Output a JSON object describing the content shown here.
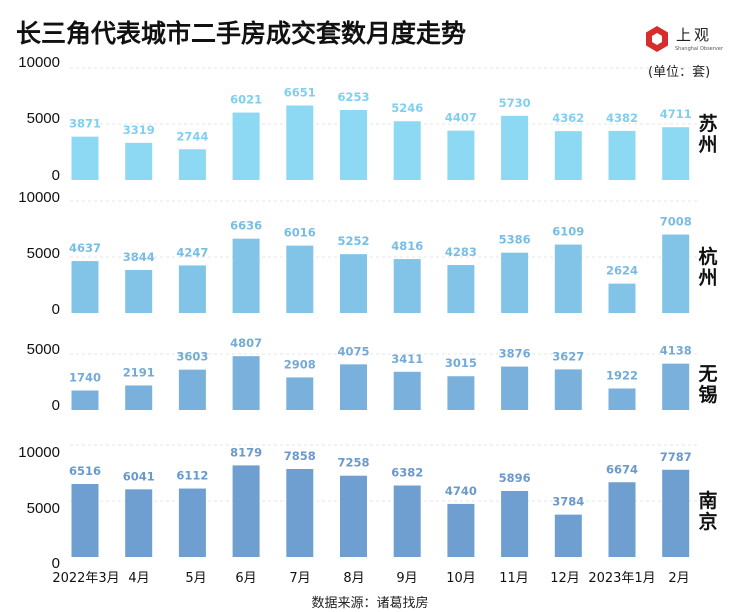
{
  "header": {
    "title": "长三角代表城市二手房成交套数月度走势",
    "logo_text": "上观",
    "logo_subtext": "Shanghai Observer",
    "unit": "(单位：套)",
    "source": "数据来源：诸葛找房"
  },
  "chart_data": {
    "type": "bar",
    "title": "长三角代表城市二手房成交套数月度走势",
    "xlabel": "",
    "ylabel": "单位：套",
    "categories": [
      "2022年3月",
      "4月",
      "5月",
      "6月",
      "7月",
      "8月",
      "9月",
      "10月",
      "11月",
      "12月",
      "2023年1月",
      "2月"
    ],
    "grid": true,
    "legend": "none",
    "panels": [
      {
        "name": "苏州",
        "color": "#8dd8f3",
        "label_color": "#7fd0f0",
        "ylim": [
          0,
          10000
        ],
        "yticks": [
          0,
          5000,
          10000
        ],
        "values": [
          3871,
          3319,
          2744,
          6021,
          6651,
          6253,
          5246,
          4407,
          5730,
          4362,
          4382,
          4711
        ]
      },
      {
        "name": "杭州",
        "color": "#82c4e8",
        "label_color": "#78bde5",
        "ylim": [
          0,
          10000
        ],
        "yticks": [
          0,
          5000,
          10000
        ],
        "values": [
          4637,
          3844,
          4247,
          6636,
          6016,
          5252,
          4816,
          4283,
          5386,
          6109,
          2624,
          7008
        ]
      },
      {
        "name": "无锡",
        "color": "#79b1dc",
        "label_color": "#74aad8",
        "ylim": [
          0,
          5000
        ],
        "yticks": [
          0,
          5000
        ],
        "values": [
          1740,
          2191,
          3603,
          4807,
          2908,
          4075,
          3411,
          3015,
          3876,
          3627,
          1922,
          4138
        ]
      },
      {
        "name": "南京",
        "color": "#6e9fd0",
        "label_color": "#6a9acc",
        "ylim": [
          0,
          10000
        ],
        "yticks": [
          0,
          5000,
          10000
        ],
        "values": [
          6516,
          6041,
          6112,
          8179,
          7858,
          7258,
          6382,
          4740,
          5896,
          3784,
          6674,
          7787
        ]
      }
    ]
  }
}
